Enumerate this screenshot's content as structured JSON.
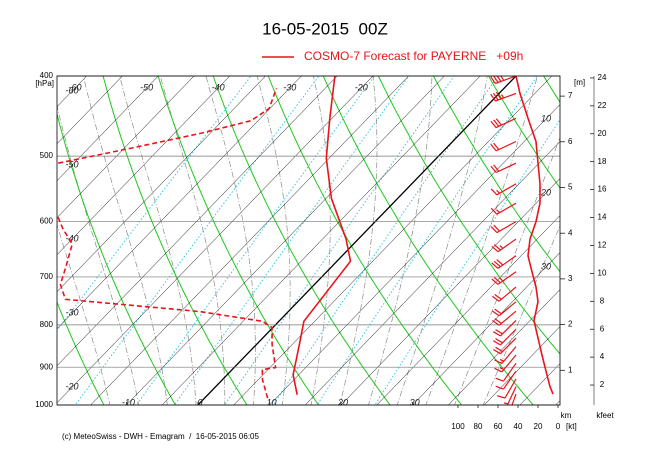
{
  "chart_data": {
    "type": "emagram",
    "title": "16-05-2015  00Z",
    "series": [
      {
        "name": "COSMO-7 Forecast for PAYERNE   +09h",
        "color": "#e8141c",
        "dash": "solid",
        "pressure": [
          972,
          919,
          881,
          834,
          792,
          670,
          630,
          563,
          503,
          450,
          400
        ],
        "values": [
          12.5,
          9.2,
          7.6,
          5.5,
          3.5,
          1.9,
          -1.7,
          -9.2,
          -15.4,
          -20.3,
          -25.3
        ]
      },
      {
        "color": "#e8141c",
        "dash": "dashed",
        "pressure": [
          981,
          932,
          906,
          901,
          845,
          806,
          792,
          771,
          745,
          715,
          681,
          639,
          612,
          592,
          550,
          510,
          489,
          469,
          453,
          438,
          414
        ],
        "values": [
          8.8,
          5.6,
          4.2,
          5.8,
          2.2,
          -0.1,
          -2.3,
          -12.3,
          -32.8,
          -35.5,
          -37.1,
          -39.3,
          -42.7,
          -45,
          null,
          -52.2,
          -44,
          -36.2,
          -31,
          -30.1,
          -31.8
        ]
      }
    ],
    "ylim": [
      1000,
      400
    ],
    "yticks": [
      400,
      500,
      600,
      700,
      800,
      900,
      1000
    ],
    "ylabel": "[hPa]",
    "log_y": true,
    "xlim": [
      -19.7,
      50.6
    ],
    "xticks": [
      -10,
      0,
      10,
      20,
      30
    ],
    "top_labels": [
      -60,
      -50,
      -40,
      -30,
      -20
    ],
    "left_labels": [
      -60,
      -50,
      -40,
      -30,
      -20
    ],
    "right_labels": [
      10,
      20,
      30
    ],
    "wind": {
      "color": "#e8141c",
      "pressure": [
        970,
        950,
        930,
        910,
        890,
        870,
        850,
        830,
        810,
        790,
        770,
        750,
        720,
        690,
        660,
        630,
        600,
        570,
        540,
        510,
        480,
        450,
        420,
        400
      ],
      "speed": [
        5,
        8,
        10,
        12,
        14,
        16,
        18,
        20,
        22,
        24,
        22,
        20,
        22,
        26,
        30,
        28,
        22,
        18,
        18,
        20,
        22,
        30,
        38,
        42
      ],
      "direction": [
        200,
        205,
        210,
        215,
        215,
        220,
        220,
        225,
        225,
        225,
        230,
        230,
        230,
        235,
        235,
        235,
        240,
        240,
        240,
        245,
        245,
        245,
        250,
        250
      ],
      "xlim": [
        0,
        100
      ],
      "xticks": [
        100,
        80,
        60,
        40,
        20,
        0
      ],
      "unit": "[kt]"
    },
    "height_axis": {
      "label": "[m]",
      "unit": "km",
      "lim": [
        0.24,
        7.44
      ],
      "ticks": [
        1,
        2,
        3,
        4,
        5,
        6,
        7
      ]
    },
    "feet_axis": {
      "unit": "kfeet",
      "lim": [
        0.57,
        24.14
      ],
      "ticks": [
        2,
        4,
        6,
        8,
        10,
        12,
        14,
        16,
        18,
        20,
        22,
        24
      ]
    },
    "footer": "(c) MeteoSwiss - DWH - Emagram  /  16-05-2015 06:05"
  }
}
